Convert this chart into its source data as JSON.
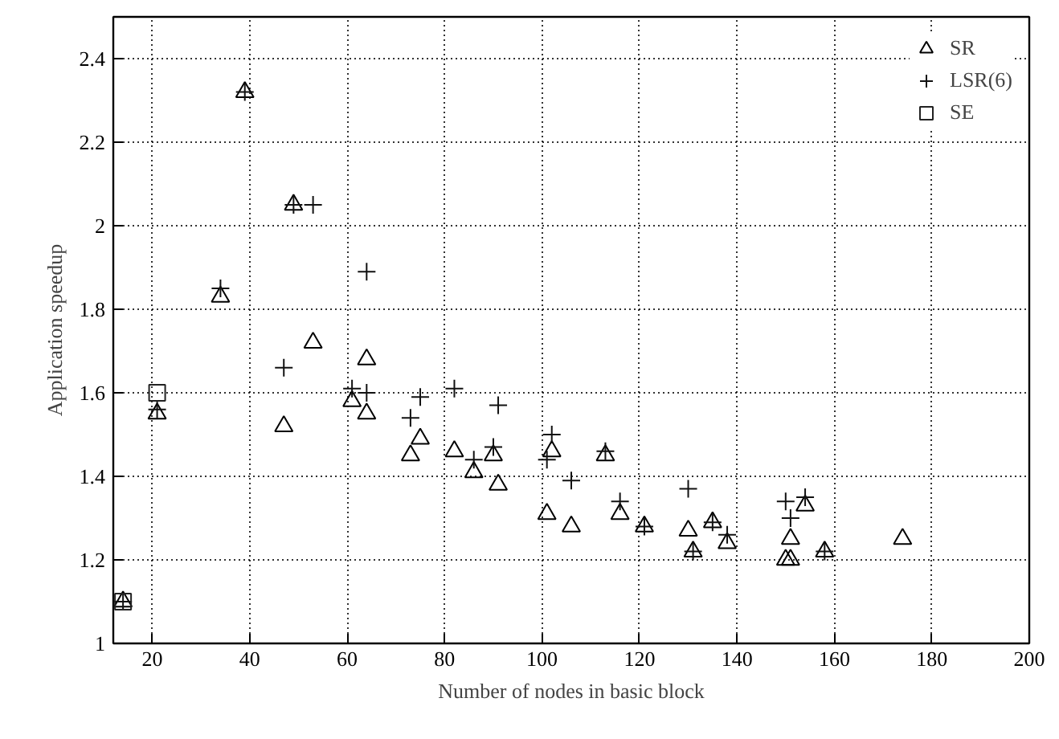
{
  "chart_data": {
    "type": "scatter",
    "xlabel": "Number of nodes in basic block",
    "ylabel": "Application speedup",
    "xlim": [
      12,
      200
    ],
    "ylim": [
      1,
      2.5
    ],
    "xticks": [
      20,
      40,
      60,
      80,
      100,
      120,
      140,
      160,
      180,
      200
    ],
    "yticks": [
      1,
      1.2,
      1.4,
      1.6,
      1.8,
      2,
      2.2,
      2.4
    ],
    "grid": true,
    "legend": "top right",
    "series": [
      {
        "name": "SR",
        "color": "#000000",
        "marker": "triangle",
        "x": [
          14,
          21,
          34,
          39,
          49,
          47,
          53,
          61,
          64,
          64,
          73,
          75,
          82,
          86,
          90,
          91,
          101,
          102,
          106,
          113,
          116,
          121,
          130,
          131,
          135,
          138,
          150,
          151,
          151,
          154,
          158,
          174
        ],
        "values": [
          1.1,
          1.55,
          1.83,
          2.32,
          2.05,
          1.52,
          1.72,
          1.58,
          1.68,
          1.55,
          1.45,
          1.49,
          1.46,
          1.41,
          1.45,
          1.38,
          1.31,
          1.46,
          1.28,
          1.45,
          1.31,
          1.28,
          1.27,
          1.22,
          1.29,
          1.24,
          1.2,
          1.2,
          1.25,
          1.33,
          1.22,
          1.25
        ]
      },
      {
        "name": "LSR(6)",
        "color": "#111111",
        "marker": "cross",
        "x": [
          14,
          21,
          34,
          39,
          49,
          53,
          47,
          64,
          61,
          64,
          73,
          75,
          82,
          86,
          90,
          91,
          101,
          102,
          106,
          113,
          116,
          121,
          130,
          131,
          135,
          138,
          150,
          151,
          154,
          158
        ],
        "values": [
          1.1,
          1.56,
          1.85,
          2.32,
          2.05,
          2.05,
          1.66,
          1.89,
          1.61,
          1.6,
          1.54,
          1.59,
          1.61,
          1.44,
          1.47,
          1.57,
          1.44,
          1.5,
          1.39,
          1.46,
          1.34,
          1.28,
          1.37,
          1.22,
          1.29,
          1.26,
          1.34,
          1.3,
          1.35,
          1.22
        ]
      },
      {
        "name": "SE",
        "color": "#222222",
        "marker": "square",
        "x": [
          14,
          21
        ],
        "values": [
          1.1,
          1.6
        ]
      }
    ]
  }
}
